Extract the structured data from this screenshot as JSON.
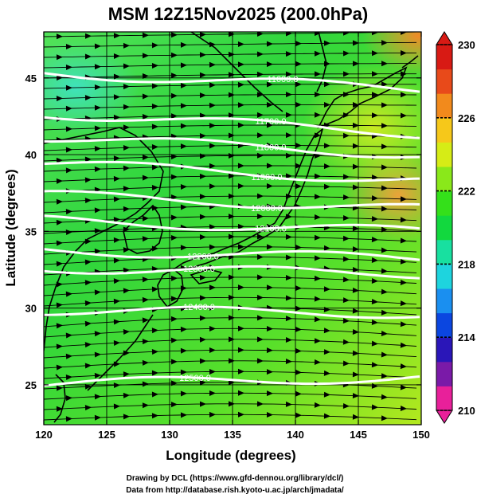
{
  "title": "MSM 12Z15Nov2025 (200.0hPa)",
  "axes": {
    "x_label": "Longitude (degrees)",
    "y_label": "Latitude  (degrees)",
    "x_range": [
      120,
      150
    ],
    "y_range": [
      22.4,
      48
    ],
    "x_ticks": [
      120,
      125,
      130,
      135,
      140,
      145,
      150
    ],
    "y_ticks": [
      25,
      30,
      35,
      40,
      45
    ]
  },
  "colorbar": {
    "range": [
      210,
      230
    ],
    "tick_labels": [
      "230",
      "226",
      "222",
      "218",
      "214",
      "210"
    ],
    "colors": [
      "#e8209a",
      "#7a1aa8",
      "#2a16b8",
      "#0b46e0",
      "#1a8ff0",
      "#1ed4de",
      "#18e0a0",
      "#12d83e",
      "#34e01a",
      "#8ae81a",
      "#d6ec16",
      "#f6c81a",
      "#f28a1c",
      "#e84a1a",
      "#d81a14"
    ]
  },
  "contours": [
    {
      "label": "11600.0"
    },
    {
      "label": "11700.0"
    },
    {
      "label": "11800.0"
    },
    {
      "label": "11900.0"
    },
    {
      "label": "12000.0"
    },
    {
      "label": "12100.0"
    },
    {
      "label": "12200.0"
    },
    {
      "label": "12300.0"
    },
    {
      "label": "12400.0"
    },
    {
      "label": "12500.0"
    }
  ],
  "credits": {
    "line1": "Drawing by DCL (https://www.gfd-dennou.org/library/dcl/)",
    "line2": "Data from http://database.rish.kyoto-u.ac.jp/arch/jmadata/"
  }
}
